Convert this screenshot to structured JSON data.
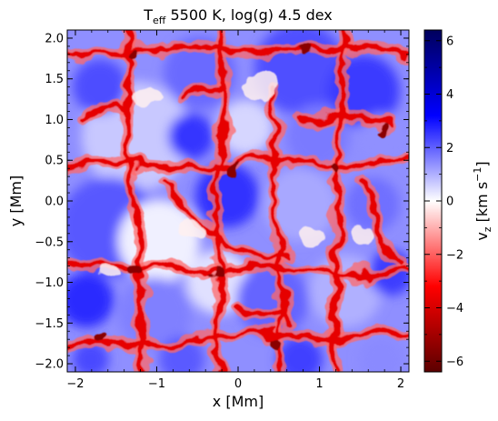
{
  "chart_data": {
    "type": "heatmap",
    "title": {
      "prefix": "T",
      "subscript": "eff",
      "suffix": " 5500 K, log(g) 4.5 dex"
    },
    "xlabel": "x [Mm]",
    "ylabel": "y [Mm]",
    "xlim": [
      -2.1,
      2.1
    ],
    "ylim": [
      -2.1,
      2.1
    ],
    "x_ticks": [
      -2,
      -1,
      0,
      1,
      2
    ],
    "x_tick_labels": [
      "−2",
      "−1",
      "0",
      "1",
      "2"
    ],
    "y_ticks": [
      2.0,
      1.5,
      1.0,
      0.5,
      0.0,
      -0.5,
      -1.0,
      -1.5,
      -2.0
    ],
    "y_tick_labels": [
      "2.0",
      "1.5",
      "1.0",
      "0.5",
      "0.0",
      "−0.5",
      "−1.0",
      "−1.5",
      "−2.0"
    ],
    "colorbar": {
      "label": {
        "base": "v",
        "sub": "z",
        "mid": " [km s",
        "sup": "−1",
        "end": "]"
      },
      "range": [
        -6.4,
        6.4
      ],
      "ticks": [
        6,
        4,
        2,
        0,
        -2,
        -4,
        -6
      ],
      "tick_labels": [
        "6",
        "4",
        "2",
        "0",
        "−2",
        "−4",
        "−6"
      ],
      "colors": [
        "#5c0000",
        "#ff0000",
        "#ffffff",
        "#0000ff",
        "#00005c"
      ]
    }
  }
}
